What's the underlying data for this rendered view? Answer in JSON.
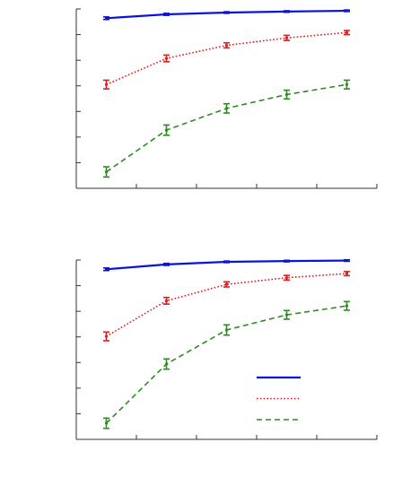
{
  "colors": {
    "series_1": "#0a14d8",
    "series_2": "#e41a1c",
    "series_3": "#2e8b22",
    "axis": "#333333"
  },
  "chart_data": [
    {
      "type": "line",
      "x": [
        1,
        2,
        3,
        4,
        5
      ],
      "xlim": [
        0.5,
        5.5
      ],
      "ylim": [
        0,
        7
      ],
      "grid": false,
      "series": [
        {
          "style": "solid",
          "values": [
            6.64,
            6.79,
            6.86,
            6.9,
            6.93
          ],
          "errors": [
            0.05,
            0.04,
            0.03,
            0.03,
            0.03
          ]
        },
        {
          "style": "dotted",
          "values": [
            4.05,
            5.07,
            5.58,
            5.87,
            6.08
          ],
          "errors": [
            0.17,
            0.13,
            0.1,
            0.1,
            0.08
          ]
        },
        {
          "style": "dashed",
          "values": [
            0.64,
            2.27,
            3.12,
            3.66,
            4.05
          ],
          "errors": [
            0.2,
            0.2,
            0.18,
            0.17,
            0.17
          ]
        }
      ]
    },
    {
      "type": "line",
      "x": [
        1,
        2,
        3,
        4,
        5
      ],
      "xlim": [
        0.5,
        5.5
      ],
      "ylim": [
        0,
        7
      ],
      "grid": false,
      "legend": {
        "position": "lower-right"
      },
      "series": [
        {
          "style": "solid",
          "values": [
            6.64,
            6.83,
            6.93,
            6.96,
            6.98
          ],
          "errors": [
            0.05,
            0.04,
            0.03,
            0.03,
            0.03
          ]
        },
        {
          "style": "dotted",
          "values": [
            4.02,
            5.41,
            6.05,
            6.31,
            6.47
          ],
          "errors": [
            0.17,
            0.13,
            0.1,
            0.09,
            0.08
          ]
        },
        {
          "style": "dashed",
          "values": [
            0.63,
            2.94,
            4.27,
            4.86,
            5.21
          ],
          "errors": [
            0.2,
            0.2,
            0.2,
            0.17,
            0.17
          ]
        }
      ]
    }
  ]
}
